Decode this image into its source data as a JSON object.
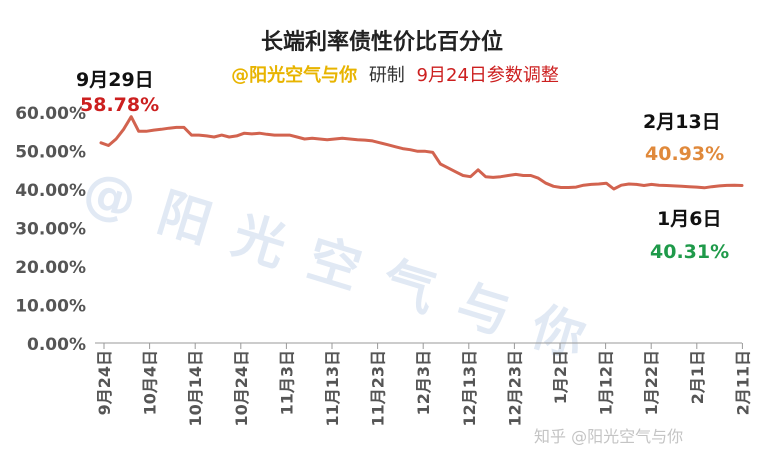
{
  "header": {
    "title": "长端利率债性价比百分位",
    "author": "@阳光空气与你",
    "made_by": "研制",
    "note": "9月24日参数调整"
  },
  "watermark": {
    "main": "@ 阳 光 空 气 与 你",
    "corner": "知乎 @阳光空气与你"
  },
  "annotations": [
    {
      "date": "9月29日",
      "value": "58.78%",
      "color": "#cc1f1f"
    },
    {
      "date": "2月13日",
      "value": "40.93%",
      "color": "#e0893b"
    },
    {
      "date": "1月6日",
      "value": "40.31%",
      "color": "#1f9a4a"
    }
  ],
  "colors": {
    "line": "#d2634f",
    "axis": "#888888",
    "text": "#222222"
  },
  "chart_data": {
    "type": "line",
    "title": "长端利率债性价比百分位",
    "xlabel": "",
    "ylabel": "",
    "ylim": [
      0,
      60
    ],
    "y_ticks": [
      "0.00%",
      "10.00%",
      "20.00%",
      "30.00%",
      "40.00%",
      "50.00%",
      "60.00%"
    ],
    "x_tick_labels": [
      "9月24日",
      "10月4日",
      "10月14日",
      "10月24日",
      "11月3日",
      "11月13日",
      "11月23日",
      "12月3日",
      "12月13日",
      "12月23日",
      "1月2日",
      "1月12日",
      "1月22日",
      "2月1日",
      "2月11日"
    ],
    "grid": false,
    "series": [
      {
        "values": [
          52.0,
          51.3,
          53.0,
          55.5,
          58.78,
          55.0,
          55.0,
          55.3,
          55.5,
          55.8,
          56.0,
          56.0,
          54.0,
          54.0,
          53.8,
          53.5,
          54.0,
          53.5,
          53.8,
          54.5,
          54.3,
          54.5,
          54.2,
          54.0,
          54.0,
          54.0,
          53.5,
          53.0,
          53.2,
          53.0,
          52.8,
          53.0,
          53.2,
          53.0,
          52.8,
          52.7,
          52.5,
          52.0,
          51.5,
          51.0,
          50.5,
          50.2,
          49.8,
          49.8,
          49.5,
          46.5,
          45.5,
          44.5,
          43.5,
          43.2,
          45.0,
          43.2,
          43.0,
          43.2,
          43.5,
          43.8,
          43.5,
          43.5,
          42.8,
          41.5,
          40.7,
          40.4,
          40.4,
          40.5,
          41.0,
          41.2,
          41.3,
          41.5,
          40.0,
          41.0,
          41.3,
          41.2,
          40.9,
          41.2,
          41.0,
          40.9,
          40.8,
          40.7,
          40.6,
          40.5,
          40.31,
          40.6,
          40.8,
          40.93,
          41.0,
          40.9
        ]
      }
    ]
  }
}
